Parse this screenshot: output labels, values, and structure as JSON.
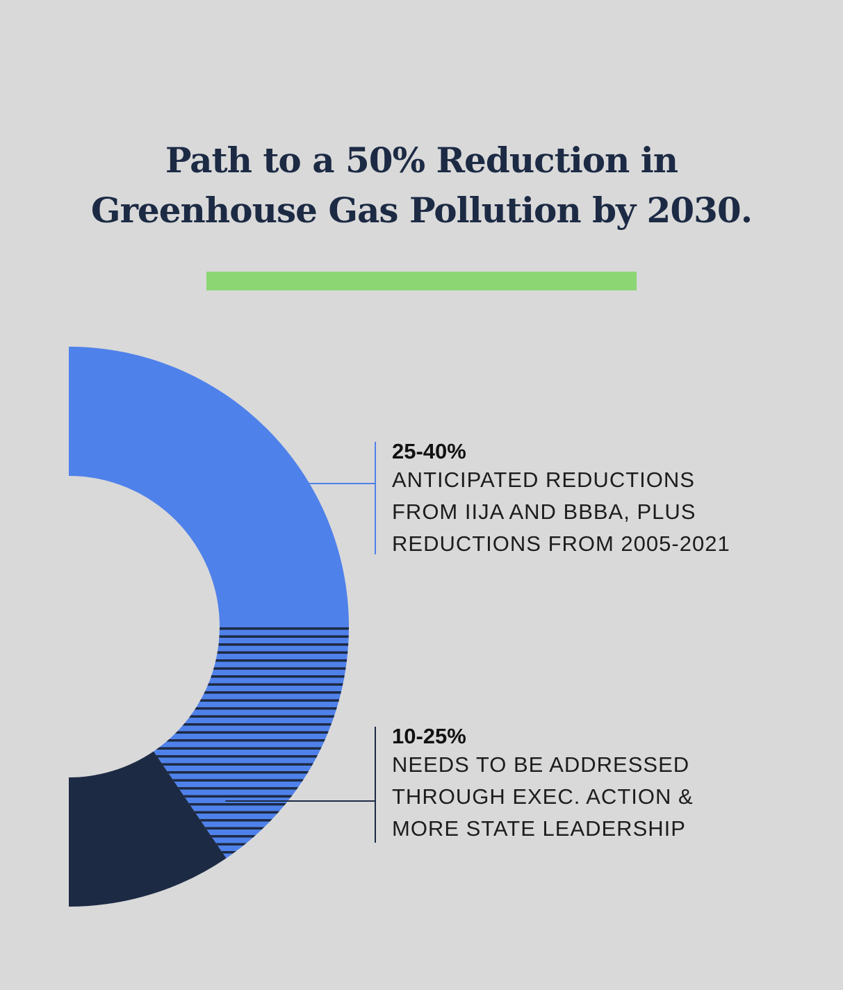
{
  "colors": {
    "background": "#d9d9d9",
    "title": "#1c2a44",
    "accent_bar": "#8cd673",
    "segment_1": "#4f81ea",
    "segment_2_stripe": "#4f81ea",
    "segment_2_base": "#1c2a44",
    "segment_3": "#1c2a44"
  },
  "chart_data": {
    "type": "pie",
    "title_lines": [
      "Path to a 50% Reduction in",
      "Greenhouse Gas Pollution by 2030."
    ],
    "segments": [
      {
        "label": "25-40%",
        "description_lines": [
          "ANTICIPATED REDUCTIONS",
          "FROM IIJA AND BBBA, PLUS",
          "REDUCTIONS FROM 2005-2021"
        ],
        "low": 25,
        "high": 40,
        "fill": "solid",
        "color": "#4f81ea"
      },
      {
        "label": "10-25%",
        "description_lines": [
          "NEEDS TO BE ADDRESSED",
          "THROUGH EXEC. ACTION &",
          "MORE STATE LEADERSHIP"
        ],
        "low": 10,
        "high": 25,
        "fill": "striped",
        "color": "#4f81ea"
      },
      {
        "label": "",
        "fill": "solid",
        "color": "#1c2a44"
      }
    ],
    "sweep_fraction_of_half_donut": [
      0.5,
      0.31,
      0.19
    ],
    "legend": "right"
  }
}
